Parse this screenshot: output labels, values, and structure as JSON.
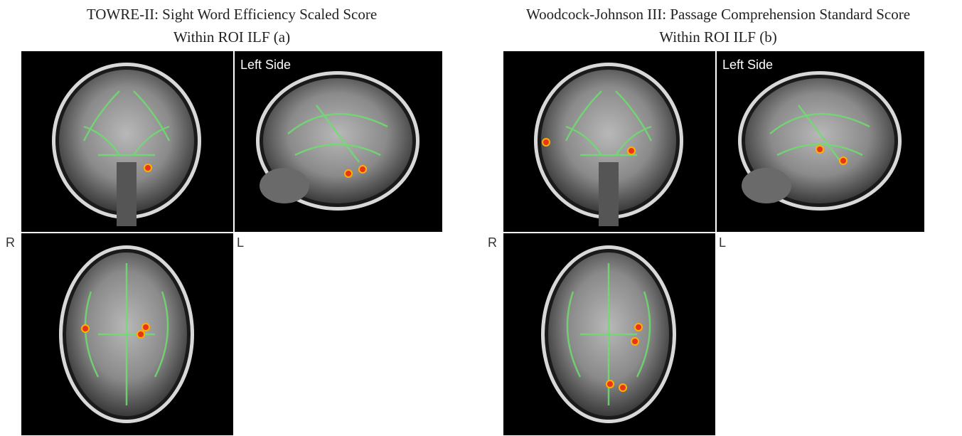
{
  "panels": [
    {
      "title": [
        "TOWRE-II: Sight Word Efficiency Scaled Score",
        "Within ROI ILF  (a)"
      ],
      "view_label": "Left Side",
      "right_label": "R",
      "left_label": "L"
    },
    {
      "title": [
        "Woodcock-Johnson III: Passage Comprehension Standard Score",
        "Within ROI ILF  (b)"
      ],
      "view_label": "Left Side",
      "right_label": "R",
      "left_label": "L"
    }
  ]
}
